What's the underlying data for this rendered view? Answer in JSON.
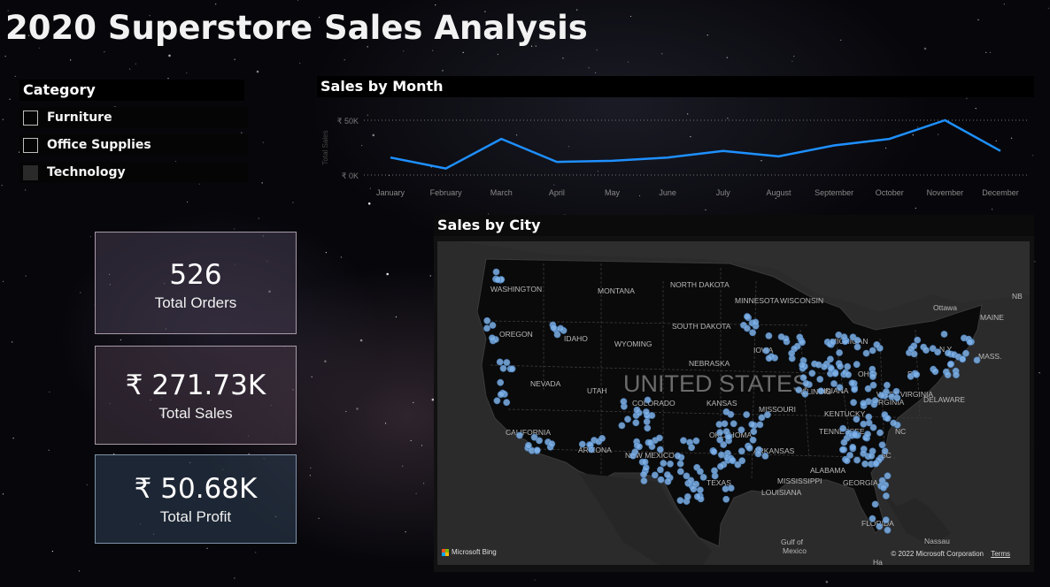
{
  "title": "2020 Superstore Sales Analysis",
  "category": {
    "header": "Category",
    "items": [
      {
        "label": "Furniture",
        "selected": false
      },
      {
        "label": "Office Supplies",
        "selected": false
      },
      {
        "label": "Technology",
        "selected": true
      }
    ]
  },
  "kpis": {
    "orders": {
      "value": "526",
      "label": "Total Orders"
    },
    "sales": {
      "value": "₹ 271.73K",
      "label": "Total Sales"
    },
    "profit": {
      "value": "₹ 50.68K",
      "label": "Total Profit"
    }
  },
  "sales_by_month": {
    "title": "Sales by Month",
    "ylabel": "Total Sales",
    "y_ticks": [
      "₹ 50K",
      "₹ 0K"
    ]
  },
  "sales_by_city": {
    "title": "Sales by City",
    "country_label": "UNITED STATES",
    "attribution": "Microsoft Bing",
    "copyright": "© 2022 Microsoft Corporation",
    "terms": "Terms",
    "city_text_partial": "Ha",
    "place_labels": [
      "WASHINGTON",
      "MONTANA",
      "NORTH DAKOTA",
      "MINNESOTA",
      "OREGON",
      "IDAHO",
      "WYOMING",
      "SOUTH DAKOTA",
      "WISCONSIN",
      "MICHIGAN",
      "NEBRASKA",
      "IOWA",
      "NEVADA",
      "UTAH",
      "COLORADO",
      "KANSAS",
      "MISSOURI",
      "ILLINOIS",
      "INDIANA",
      "OHIO",
      "PA",
      "N.Y.",
      "MAINE",
      "NB",
      "Ottawa",
      "CALIFORNIA",
      "ARIZONA",
      "NEW MEXICO",
      "OKLAHOMA",
      "TEXAS",
      "ARKANSAS",
      "KENTUCKY",
      "TENNESSEE",
      "MISSISSIPPI",
      "ALABAMA",
      "GEORGIA",
      "LOUISIANA",
      "FLORIDA",
      "SC",
      "NC",
      "VIRGINIA",
      "WEST VIRGINIA",
      "DELAWARE",
      "MASS.",
      "Gulf of",
      "Mexico",
      "Nassau"
    ]
  },
  "chart_data": {
    "type": "line",
    "title": "Sales by Month",
    "xlabel": "",
    "ylabel": "Total Sales",
    "categories": [
      "January",
      "February",
      "March",
      "April",
      "May",
      "June",
      "July",
      "August",
      "September",
      "October",
      "November",
      "December"
    ],
    "series": [
      {
        "values": [
          16000,
          6000,
          33000,
          12000,
          13000,
          16000,
          22000,
          17000,
          27000,
          33000,
          50000,
          22000
        ]
      }
    ],
    "ylim": [
      0,
      50000
    ],
    "grid": true,
    "color": "#1e90ff"
  },
  "map_points_color": "#7fb2e8"
}
